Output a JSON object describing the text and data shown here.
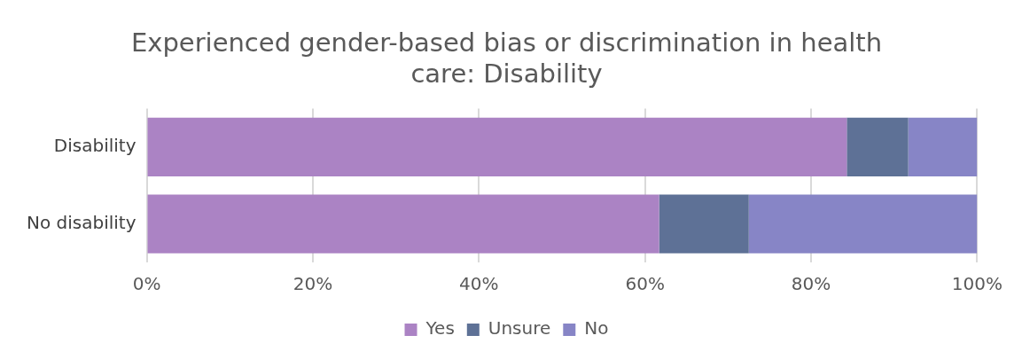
{
  "chart_data": {
    "type": "bar",
    "orientation": "horizontal",
    "stacked": true,
    "title": "Experienced gender-based bias or discrimination in health care: Disability",
    "categories": [
      "Disability",
      "No disability"
    ],
    "series": [
      {
        "name": "Yes",
        "color": "#ab83c4",
        "values": [
          84.3,
          61.7
        ]
      },
      {
        "name": "Unsure",
        "color": "#5e7196",
        "values": [
          7.4,
          10.8
        ]
      },
      {
        "name": "No",
        "color": "#8785c6",
        "values": [
          8.3,
          27.5
        ]
      }
    ],
    "xlim": [
      0,
      100
    ],
    "xticks": [
      {
        "value": 0,
        "label": "0%"
      },
      {
        "value": 20,
        "label": "20%"
      },
      {
        "value": 40,
        "label": "40%"
      },
      {
        "value": 60,
        "label": "60%"
      },
      {
        "value": 80,
        "label": "80%"
      },
      {
        "value": 100,
        "label": "100%"
      }
    ],
    "grid": "x",
    "legend": "bottom"
  }
}
